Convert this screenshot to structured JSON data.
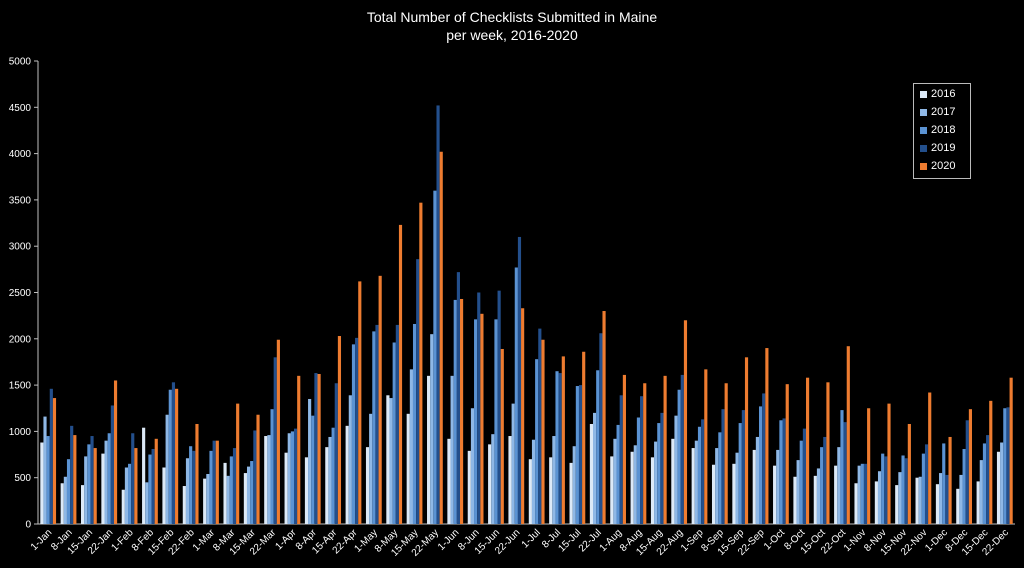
{
  "chart_data": {
    "type": "bar",
    "title": "Total Number of Checklists Submitted in Maine",
    "subtitle": "per week, 2016-2020",
    "xlabel": "",
    "ylabel": "",
    "ylim": [
      0,
      5000
    ],
    "yticks": [
      0,
      500,
      1000,
      1500,
      2000,
      2500,
      3000,
      3500,
      4000,
      4500,
      5000
    ],
    "grid": false,
    "legend_position": "top-right",
    "categories": [
      "1-Jan",
      "8-Jan",
      "15-Jan",
      "22-Jan",
      "1-Feb",
      "8-Feb",
      "15-Feb",
      "22-Feb",
      "1-Mar",
      "8-Mar",
      "15-Mar",
      "22-Mar",
      "1-Apr",
      "8-Apr",
      "15-Apr",
      "22-Apr",
      "1-May",
      "8-May",
      "15-May",
      "22-May",
      "1-Jun",
      "8-Jun",
      "15-Jun",
      "22-Jun",
      "1-Jul",
      "8-Jul",
      "15-Jul",
      "22-Jul",
      "1-Aug",
      "8-Aug",
      "15-Aug",
      "22-Aug",
      "1-Sep",
      "8-Sep",
      "15-Sep",
      "22-Sep",
      "1-Oct",
      "8-Oct",
      "15-Oct",
      "22-Oct",
      "1-Nov",
      "8-Nov",
      "15-Nov",
      "22-Nov",
      "1-Dec",
      "8-Dec",
      "15-Dec",
      "22-Dec"
    ],
    "series": [
      {
        "name": "2016",
        "color": "#dce9f7",
        "values": [
          880,
          440,
          420,
          760,
          370,
          1040,
          610,
          410,
          490,
          660,
          550,
          950,
          770,
          720,
          830,
          1060,
          830,
          1390,
          1190,
          1600,
          920,
          790,
          860,
          950,
          700,
          720,
          660,
          1080,
          730,
          780,
          720,
          920,
          820,
          640,
          650,
          800,
          630,
          510,
          520,
          630,
          440,
          460,
          420,
          500,
          430,
          380,
          460,
          780
        ]
      },
      {
        "name": "2017",
        "color": "#8fb8e6",
        "values": [
          1160,
          510,
          730,
          900,
          610,
          450,
          1180,
          710,
          540,
          520,
          620,
          960,
          980,
          1350,
          940,
          1390,
          1190,
          1360,
          1670,
          2050,
          1600,
          1250,
          970,
          1300,
          910,
          950,
          840,
          1200,
          920,
          850,
          890,
          1170,
          900,
          820,
          770,
          940,
          800,
          690,
          600,
          830,
          630,
          570,
          560,
          510,
          550,
          530,
          690,
          880
        ]
      },
      {
        "name": "2018",
        "color": "#5b93d3",
        "values": [
          950,
          700,
          860,
          980,
          650,
          750,
          1450,
          840,
          790,
          730,
          680,
          1240,
          1000,
          1170,
          1040,
          1940,
          2080,
          1960,
          2160,
          3600,
          2420,
          2210,
          2210,
          2770,
          1780,
          1650,
          1490,
          1660,
          1070,
          1150,
          1090,
          1450,
          1050,
          990,
          1090,
          1270,
          1120,
          900,
          830,
          1230,
          650,
          760,
          740,
          760,
          870,
          810,
          870,
          1250
        ]
      },
      {
        "name": "2019",
        "color": "#234f8c",
        "values": [
          1460,
          1060,
          950,
          1280,
          980,
          810,
          1530,
          790,
          900,
          820,
          1010,
          1800,
          1030,
          1630,
          1520,
          2010,
          2150,
          2150,
          2860,
          4520,
          2720,
          2500,
          2520,
          3100,
          2110,
          1630,
          1500,
          2060,
          1390,
          1380,
          1200,
          1610,
          1130,
          1240,
          1230,
          1410,
          1140,
          1030,
          940,
          1100,
          650,
          730,
          710,
          860,
          530,
          1120,
          960,
          1260
        ]
      },
      {
        "name": "2020",
        "color": "#ee7c30",
        "values": [
          1360,
          960,
          820,
          1550,
          820,
          920,
          1460,
          1080,
          900,
          1300,
          1180,
          1990,
          1600,
          1620,
          2030,
          2620,
          2680,
          3230,
          3470,
          4020,
          2430,
          2270,
          1890,
          2330,
          1990,
          1810,
          1860,
          2300,
          1610,
          1520,
          1600,
          2200,
          1670,
          1520,
          1800,
          1900,
          1510,
          1580,
          1530,
          1920,
          1250,
          1300,
          1080,
          1420,
          940,
          1240,
          1330,
          1580
        ]
      }
    ]
  }
}
